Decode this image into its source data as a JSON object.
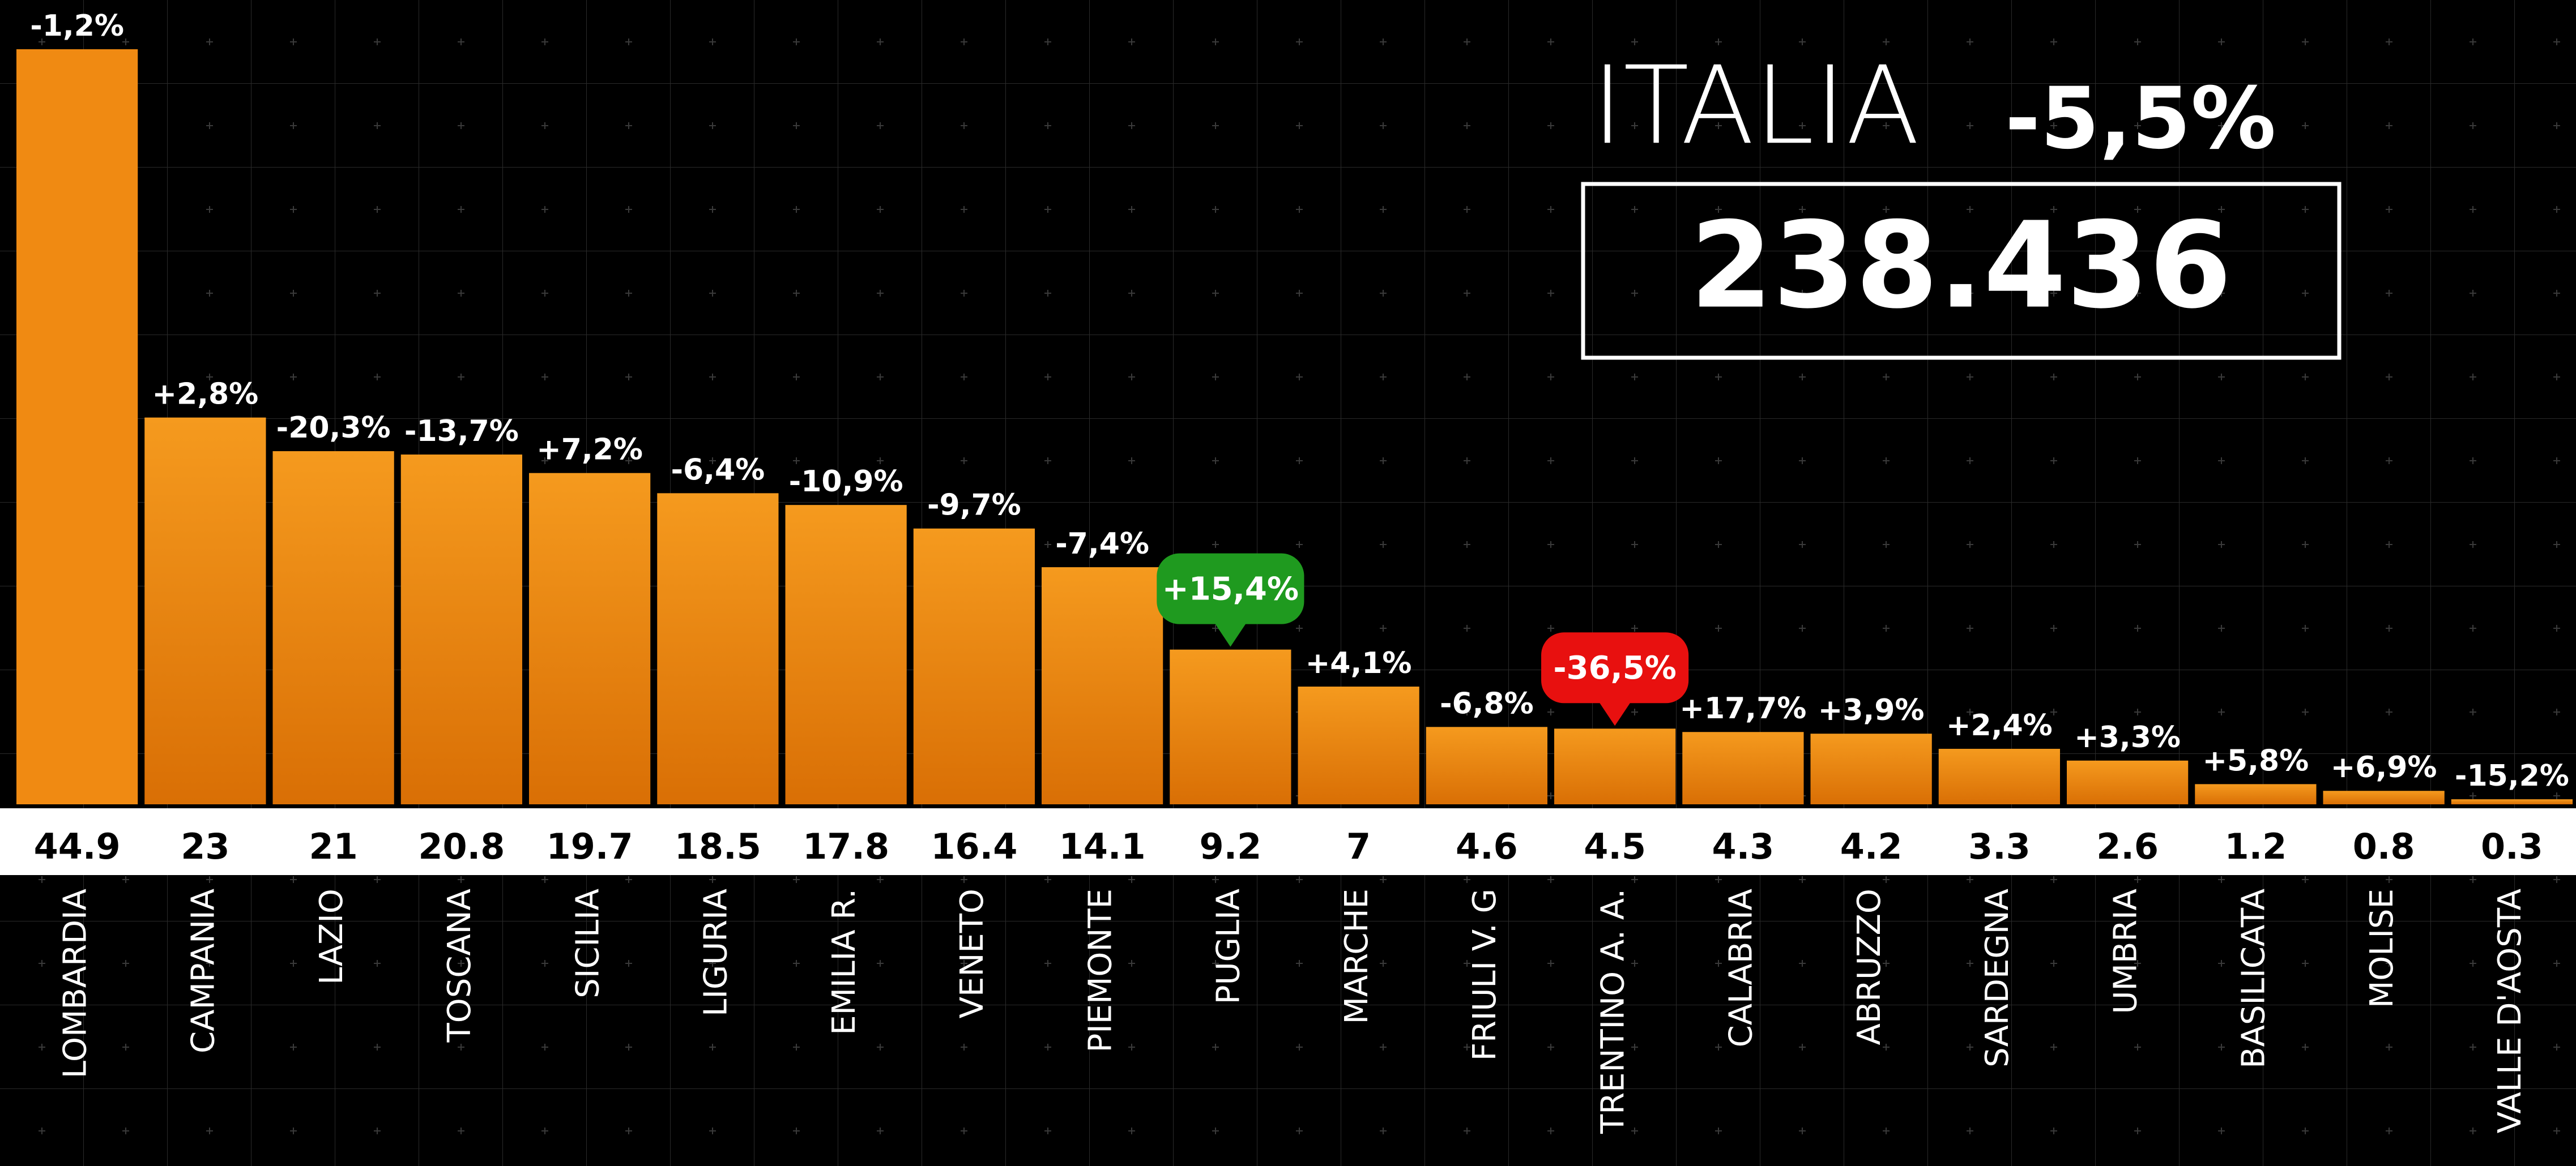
{
  "chart_data": {
    "type": "bar",
    "title": "ITALIA",
    "title_change": "-5,5%",
    "total": "238.436",
    "categories": [
      "LOMBARDIA",
      "CAMPANIA",
      "LAZIO",
      "TOSCANA",
      "SICILIA",
      "LIGURIA",
      "EMILIA R.",
      "VENETO",
      "PIEMONTE",
      "PUGLIA",
      "MARCHE",
      "FRIULI V. G",
      "TRENTINO A. A.",
      "CALABRIA",
      "ABRUZZO",
      "SARDEGNA",
      "UMBRIA",
      "BASILICATA",
      "MOLISE",
      "VALLE D'AOSTA"
    ],
    "values": [
      44.9,
      23,
      21,
      20.8,
      19.7,
      18.5,
      17.8,
      16.4,
      14.1,
      9.2,
      7,
      4.6,
      4.5,
      4.3,
      4.2,
      3.3,
      2.6,
      1.2,
      0.8,
      0.3
    ],
    "changes": [
      "-1,2%",
      "+2,8%",
      "-20,3%",
      "-13,7%",
      "+7,2%",
      "-6,4%",
      "-10,9%",
      "-9,7%",
      "-7,4%",
      "+15,4%",
      "+4,1%",
      "-6,8%",
      "-36,5%",
      "+17,7%",
      "+3,9%",
      "+2,4%",
      "+3,3%",
      "+5,8%",
      "+6,9%",
      "-15,2%"
    ],
    "callout_colors": [
      null,
      null,
      null,
      null,
      null,
      null,
      null,
      null,
      null,
      "#1f9a1f",
      null,
      null,
      "#e8100f",
      null,
      null,
      null,
      null,
      null,
      null,
      null
    ],
    "color": "#f08a12"
  }
}
